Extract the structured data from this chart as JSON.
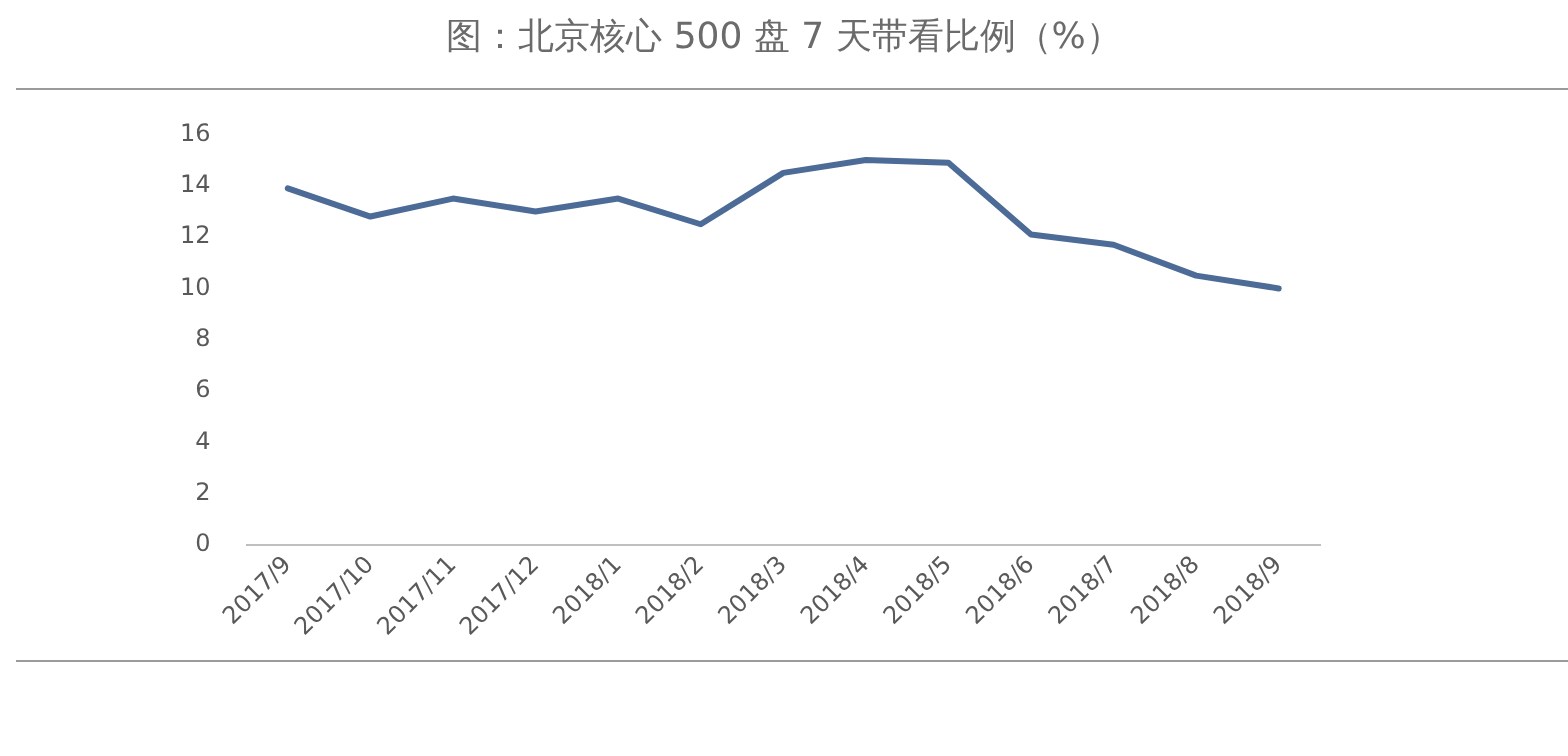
{
  "chart_data": {
    "type": "line",
    "title": "图：北京核心 500 盘 7 天带看比例（%）",
    "categories": [
      "2017/9",
      "2017/10",
      "2017/11",
      "2017/12",
      "2018/1",
      "2018/2",
      "2018/3",
      "2018/4",
      "2018/5",
      "2018/6",
      "2018/7",
      "2018/8",
      "2018/9"
    ],
    "series": [
      {
        "color": "#4c6c97",
        "values": [
          13.9,
          12.8,
          13.5,
          13.0,
          13.5,
          12.5,
          14.5,
          15.0,
          14.9,
          12.1,
          11.7,
          10.5,
          10.0
        ]
      }
    ],
    "ylim": [
      0,
      16
    ],
    "yticks": [
      0,
      2,
      4,
      6,
      8,
      10,
      12,
      14,
      16
    ],
    "grid": false,
    "legend": false,
    "marker": "none",
    "line_style": "solid"
  }
}
